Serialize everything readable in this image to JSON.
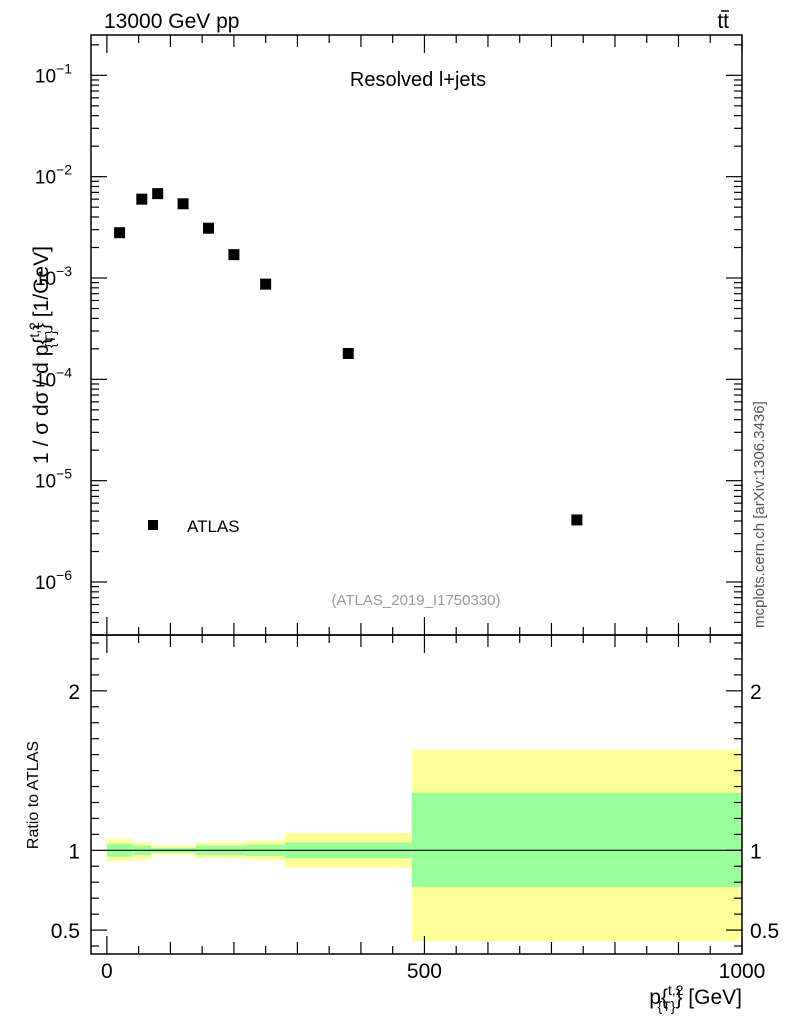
{
  "header": {
    "left_label": "13000 GeV pp",
    "right_label_base": "t",
    "right_label_bar": "t"
  },
  "side_label": "mcplots.cern.ch [arXiv:1306.3436]",
  "colors": {
    "band_outer": "#ffff99",
    "band_inner": "#99ff99",
    "marker": "#000000",
    "analysis_label": "#999999"
  },
  "chart_data": [
    {
      "type": "scatter",
      "title": "Resolved l+jets",
      "analysis_id": "(ATLAS_2019_I1750330)",
      "ylabel": {
        "prefix": "1 / σ dσ / d p",
        "sup": "t,2",
        "sub": "{T}",
        "suffix": "} [1/GeV]",
        "brace": "{"
      },
      "yscale": "log",
      "ylim": [
        3e-07,
        0.25
      ],
      "xlim": [
        -25,
        1000
      ],
      "y_tick_labels": [
        {
          "value": 0.1,
          "base": "10",
          "exp": "−1"
        },
        {
          "value": 0.01,
          "base": "10",
          "exp": "−2"
        },
        {
          "value": 0.001,
          "base": "10",
          "exp": "−3"
        },
        {
          "value": 0.0001,
          "base": "10",
          "exp": "−4"
        },
        {
          "value": 1e-05,
          "base": "10",
          "exp": "−5"
        },
        {
          "value": 1e-06,
          "base": "10",
          "exp": "−6"
        }
      ],
      "legend": {
        "position": "lower-left",
        "entries": [
          "ATLAS"
        ]
      },
      "series": [
        {
          "name": "ATLAS",
          "x": [
            20,
            55,
            80,
            120,
            160,
            200,
            250,
            380,
            740
          ],
          "y": [
            0.0028,
            0.006,
            0.0068,
            0.0054,
            0.0031,
            0.0017,
            0.00087,
            0.00018,
            4.1e-06
          ]
        }
      ]
    },
    {
      "type": "area",
      "ylabel": "Ratio to ATLAS",
      "xlabel": {
        "base": "p",
        "sup": "t,2",
        "sub": "{T}",
        "suffix": "} [GeV]",
        "brace": "{"
      },
      "ylim": [
        0.35,
        2.35
      ],
      "xlim": [
        -25,
        1000
      ],
      "x_ticks": [
        0,
        500,
        1000
      ],
      "x_tick_labels": [
        "0",
        "500",
        "1000"
      ],
      "y_ticks": [
        0.5,
        1,
        2
      ],
      "y_tick_labels": [
        "0.5",
        "1",
        "2"
      ],
      "reference_line": 1,
      "bins": [
        {
          "xlo": 0,
          "xhi": 40,
          "inner": [
            0.96,
            1.04
          ],
          "outer": [
            0.93,
            1.07
          ]
        },
        {
          "xlo": 40,
          "xhi": 70,
          "inner": [
            0.97,
            1.03
          ],
          "outer": [
            0.94,
            1.05
          ]
        },
        {
          "xlo": 70,
          "xhi": 140,
          "inner": [
            0.985,
            1.015
          ],
          "outer": [
            0.97,
            1.03
          ]
        },
        {
          "xlo": 140,
          "xhi": 220,
          "inner": [
            0.97,
            1.03
          ],
          "outer": [
            0.95,
            1.05
          ]
        },
        {
          "xlo": 220,
          "xhi": 280,
          "inner": [
            0.965,
            1.035
          ],
          "outer": [
            0.94,
            1.06
          ]
        },
        {
          "xlo": 280,
          "xhi": 480,
          "inner": [
            0.95,
            1.05
          ],
          "outer": [
            0.89,
            1.11
          ]
        },
        {
          "xlo": 480,
          "xhi": 1000,
          "inner": [
            0.77,
            1.36
          ],
          "outer": [
            0.43,
            1.63
          ]
        }
      ]
    }
  ]
}
